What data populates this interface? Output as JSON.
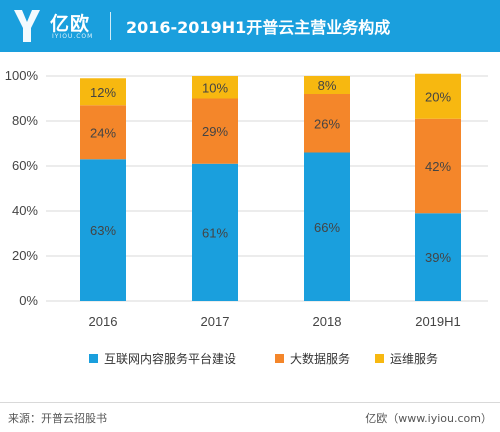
{
  "header": {
    "brand_name": "亿欧",
    "brand_sub": "IYIOU.COM",
    "title": "2016-2019H1开普云主营业务构成"
  },
  "colors": {
    "header_bg": "#1a9fdd",
    "series": [
      "#1a9fdd",
      "#f4862a",
      "#f7b810"
    ]
  },
  "chart_data": {
    "type": "bar",
    "stacked": true,
    "categories": [
      "2016",
      "2017",
      "2018",
      "2019H1"
    ],
    "series": [
      {
        "name": "互联网内容服务平台建设",
        "values": [
          63,
          61,
          66,
          39
        ],
        "labels": [
          "63%",
          "61%",
          "66%",
          "39%"
        ]
      },
      {
        "name": "大数据服务",
        "values": [
          24,
          29,
          26,
          42
        ],
        "labels": [
          "24%",
          "29%",
          "26%",
          "42%"
        ]
      },
      {
        "name": "运维服务",
        "values": [
          12,
          10,
          8,
          20
        ],
        "labels": [
          "12%",
          "10%",
          "8%",
          "20%"
        ]
      }
    ],
    "y_ticks": [
      "0%",
      "20%",
      "40%",
      "60%",
      "80%",
      "100%"
    ],
    "ylim": [
      0,
      100
    ],
    "legend_position": "bottom"
  },
  "footer": {
    "source": "来源：开普云招股书",
    "site": "亿欧（www.iyiou.com）"
  }
}
